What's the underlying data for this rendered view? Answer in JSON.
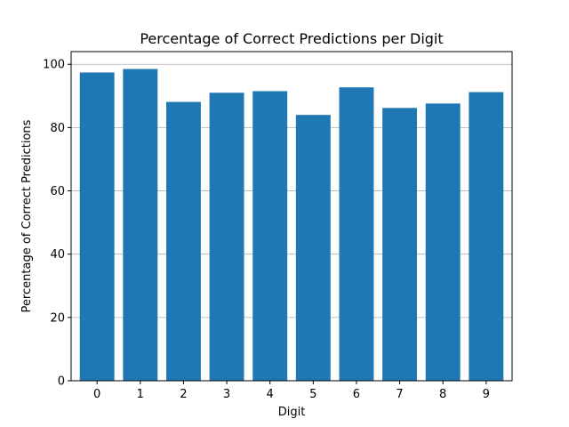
{
  "chart_data": {
    "type": "bar",
    "title": "Percentage of Correct Predictions per Digit",
    "xlabel": "Digit",
    "ylabel": "Percentage of Correct Predictions",
    "categories": [
      "0",
      "1",
      "2",
      "3",
      "4",
      "5",
      "6",
      "7",
      "8",
      "9"
    ],
    "values": [
      97.4,
      98.5,
      88.1,
      91.0,
      91.5,
      84.0,
      92.7,
      86.2,
      87.6,
      91.2
    ],
    "ylim": [
      0,
      104
    ],
    "yticks": [
      "0",
      "20",
      "40",
      "60",
      "80",
      "100"
    ],
    "grid": "y",
    "bar_color": "#1f77b4"
  }
}
